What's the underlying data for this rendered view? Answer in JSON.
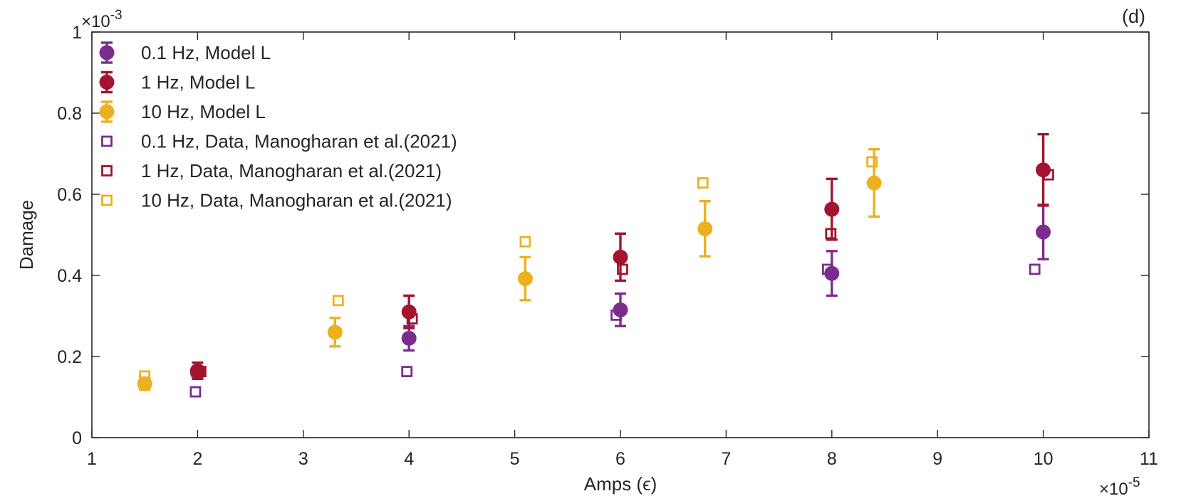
{
  "chart_data": {
    "type": "scatter",
    "panel_label": "(d)",
    "xlabel": "Amps (ϵ)",
    "ylabel": "Damage",
    "x_exponent_base": "×10",
    "x_exponent_power": "-5",
    "y_exponent_base": "×10",
    "y_exponent_power": "-3",
    "xlim": [
      1,
      11
    ],
    "ylim": [
      0,
      1
    ],
    "x_ticks": [
      "1",
      "2",
      "3",
      "4",
      "5",
      "6",
      "7",
      "8",
      "9",
      "10",
      "11"
    ],
    "y_ticks": [
      "0",
      "0.2",
      "0.4",
      "0.6",
      "0.8",
      "1"
    ],
    "legend_position": "top-left",
    "series": [
      {
        "name": "0.1 Hz, Model L",
        "kind": "model",
        "color": "#7B2D8E",
        "points": [
          {
            "x": 2,
            "y": 0.16,
            "err": 0.015
          },
          {
            "x": 4,
            "y": 0.245,
            "err": 0.03
          },
          {
            "x": 6,
            "y": 0.315,
            "err": 0.04
          },
          {
            "x": 8,
            "y": 0.405,
            "err": 0.055
          },
          {
            "x": 10,
            "y": 0.507,
            "err": 0.067
          }
        ]
      },
      {
        "name": "1 Hz, Model L",
        "kind": "model",
        "color": "#A2142F",
        "points": [
          {
            "x": 2,
            "y": 0.165,
            "err": 0.02
          },
          {
            "x": 4,
            "y": 0.31,
            "err": 0.04
          },
          {
            "x": 6,
            "y": 0.445,
            "err": 0.058
          },
          {
            "x": 8,
            "y": 0.563,
            "err": 0.075
          },
          {
            "x": 10,
            "y": 0.66,
            "err": 0.088
          }
        ]
      },
      {
        "name": "10 Hz, Model L",
        "kind": "model",
        "color": "#EDB120",
        "points": [
          {
            "x": 1.5,
            "y": 0.133,
            "err": 0.015
          },
          {
            "x": 3.3,
            "y": 0.26,
            "err": 0.035
          },
          {
            "x": 5.1,
            "y": 0.392,
            "err": 0.053
          },
          {
            "x": 6.8,
            "y": 0.515,
            "err": 0.068
          },
          {
            "x": 8.4,
            "y": 0.628,
            "err": 0.083
          }
        ]
      },
      {
        "name": "0.1 Hz, Data, Manogharan et al.(2021)",
        "kind": "data",
        "color": "#7B2D8E",
        "points": [
          {
            "x": 1.98,
            "y": 0.113
          },
          {
            "x": 3.98,
            "y": 0.163
          },
          {
            "x": 5.96,
            "y": 0.302
          },
          {
            "x": 7.96,
            "y": 0.415
          },
          {
            "x": 9.92,
            "y": 0.415
          }
        ]
      },
      {
        "name": "1 Hz, Data, Manogharan et al.(2021)",
        "kind": "data",
        "color": "#A2142F",
        "points": [
          {
            "x": 2.03,
            "y": 0.163
          },
          {
            "x": 4.03,
            "y": 0.293
          },
          {
            "x": 6.02,
            "y": 0.415
          },
          {
            "x": 7.99,
            "y": 0.503
          },
          {
            "x": 10.05,
            "y": 0.648
          }
        ]
      },
      {
        "name": "10 Hz, Data, Manogharan et al.(2021)",
        "kind": "data",
        "color": "#EDB120",
        "points": [
          {
            "x": 1.5,
            "y": 0.152
          },
          {
            "x": 3.33,
            "y": 0.338
          },
          {
            "x": 5.1,
            "y": 0.483
          },
          {
            "x": 6.78,
            "y": 0.628
          },
          {
            "x": 8.38,
            "y": 0.68
          }
        ]
      }
    ]
  }
}
